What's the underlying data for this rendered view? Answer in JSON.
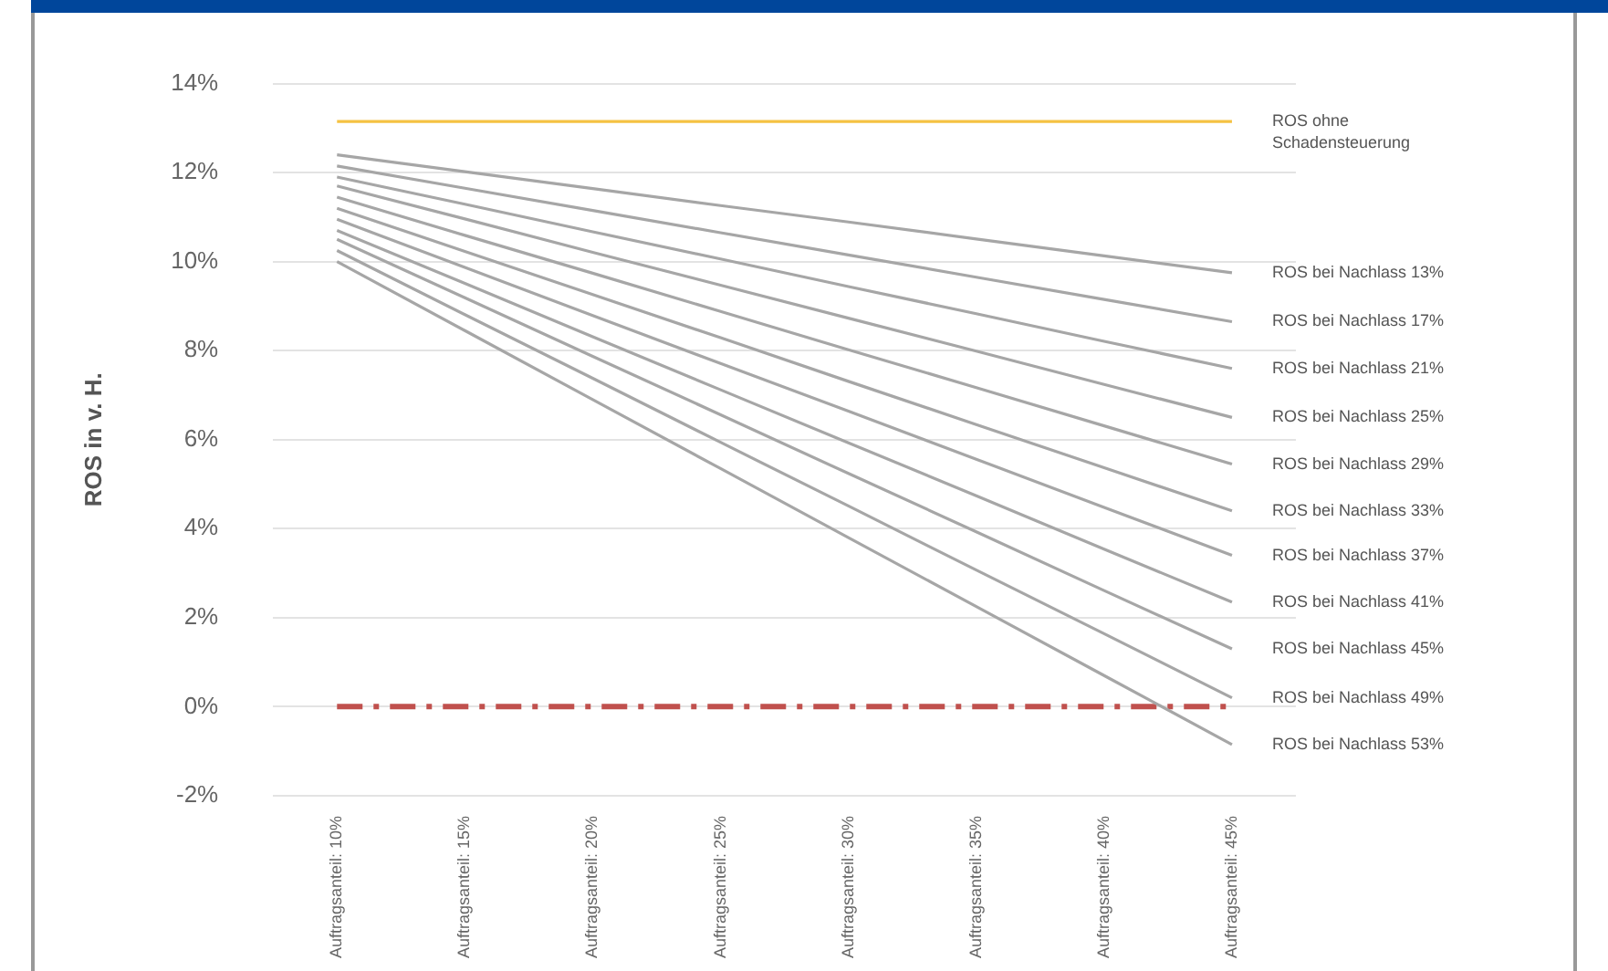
{
  "chart_data": {
    "type": "line",
    "ylabel": "ROS in v. H.",
    "categories": [
      "Auftragsanteil: 10%",
      "Auftragsanteil: 15%",
      "Auftragsanteil: 20%",
      "Auftragsanteil: 25%",
      "Auftragsanteil: 30%",
      "Auftragsanteil: 35%",
      "Auftragsanteil: 40%",
      "Auftragsanteil: 45%"
    ],
    "ylim": [
      -2,
      14
    ],
    "yticks": [
      {
        "value": -2,
        "label": "-2%"
      },
      {
        "value": 0,
        "label": "0%"
      },
      {
        "value": 2,
        "label": "2%"
      },
      {
        "value": 4,
        "label": "4%"
      },
      {
        "value": 6,
        "label": "6%"
      },
      {
        "value": 8,
        "label": "8%"
      },
      {
        "value": 10,
        "label": "10%"
      },
      {
        "value": 12,
        "label": "12%"
      },
      {
        "value": 14,
        "label": "14%"
      }
    ],
    "grid": "y",
    "legend": false,
    "marker": "none",
    "line_style": "solid",
    "series": [
      {
        "name": "ROS ohne Schadensteuerung",
        "color": "#f5c242",
        "values": [
          13.15,
          13.15,
          13.15,
          13.15,
          13.15,
          13.15,
          13.15,
          13.15
        ]
      },
      {
        "name": "ROS bei Nachlass 13%",
        "color": "#a6a6a6",
        "values": [
          12.4,
          12.02,
          11.64,
          11.26,
          10.89,
          10.51,
          10.13,
          9.75
        ]
      },
      {
        "name": "ROS bei Nachlass 17%",
        "color": "#a6a6a6",
        "values": [
          12.15,
          11.65,
          11.15,
          10.65,
          10.15,
          9.65,
          9.15,
          8.65
        ]
      },
      {
        "name": "ROS bei Nachlass 21%",
        "color": "#a6a6a6",
        "values": [
          11.9,
          11.29,
          10.67,
          10.06,
          9.44,
          8.83,
          8.21,
          7.6
        ]
      },
      {
        "name": "ROS bei Nachlass 25%",
        "color": "#a6a6a6",
        "values": [
          11.7,
          10.96,
          10.21,
          9.47,
          8.73,
          7.99,
          7.24,
          6.5
        ]
      },
      {
        "name": "ROS bei Nachlass 29%",
        "color": "#a6a6a6",
        "values": [
          11.45,
          10.59,
          9.74,
          8.88,
          8.02,
          7.17,
          6.31,
          5.45
        ]
      },
      {
        "name": "ROS bei Nachlass 33%",
        "color": "#a6a6a6",
        "values": [
          11.2,
          10.23,
          9.26,
          8.29,
          7.31,
          6.34,
          5.37,
          4.4
        ]
      },
      {
        "name": "ROS bei Nachlass 37%",
        "color": "#a6a6a6",
        "values": [
          10.95,
          9.87,
          8.79,
          7.71,
          6.64,
          5.56,
          4.48,
          3.4
        ]
      },
      {
        "name": "ROS bei Nachlass 41%",
        "color": "#a6a6a6",
        "values": [
          10.7,
          9.51,
          8.31,
          7.12,
          5.93,
          4.74,
          3.54,
          2.35
        ]
      },
      {
        "name": "ROS bei Nachlass 45%",
        "color": "#a6a6a6",
        "values": [
          10.5,
          9.19,
          7.87,
          6.56,
          5.24,
          3.93,
          2.61,
          1.3
        ]
      },
      {
        "name": "ROS bei Nachlass 49%",
        "color": "#a6a6a6",
        "values": [
          10.25,
          8.81,
          7.38,
          5.94,
          4.51,
          3.07,
          1.64,
          0.2
        ]
      },
      {
        "name": "ROS bei Nachlass 53%",
        "color": "#a6a6a6",
        "values": [
          10,
          8.45,
          6.9,
          5.35,
          3.8,
          2.25,
          0.7,
          -0.85
        ]
      },
      {
        "color": "#c0504d",
        "line_style": "dashed",
        "values": [
          0,
          0,
          0,
          0,
          0,
          0,
          0,
          0
        ]
      }
    ]
  }
}
